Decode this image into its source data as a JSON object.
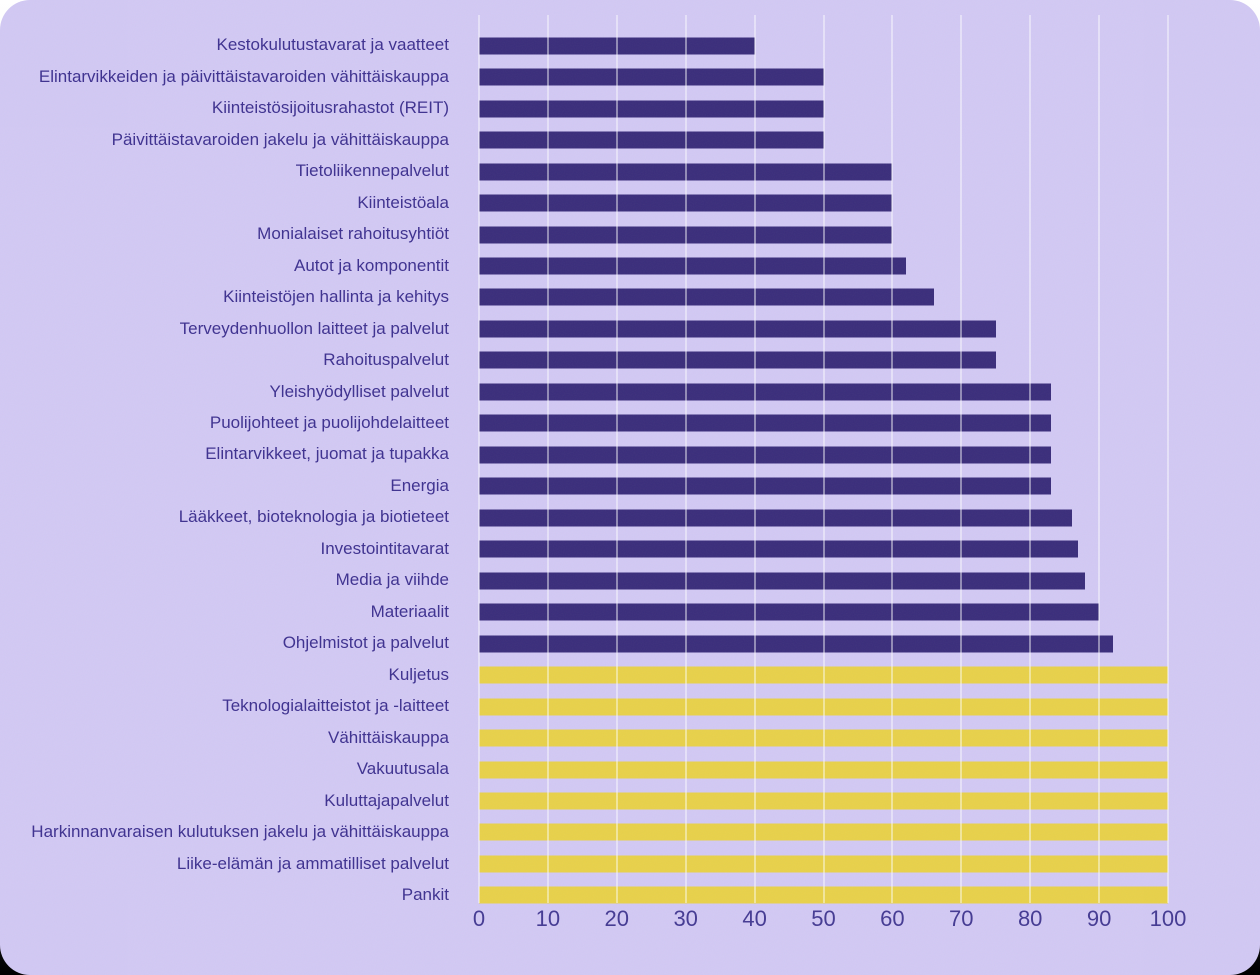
{
  "colors": {
    "panel_background": "#d2c9f4",
    "bar_purple": "#3a2d7b",
    "bar_yellow": "#e8d14a",
    "label_text": "#3e3190",
    "tick_text": "#443a93",
    "gridline": "rgba(255,255,255,0.45)"
  },
  "chart_data": {
    "type": "bar",
    "orientation": "horizontal",
    "title": "",
    "xlabel": "",
    "ylabel": "",
    "xlim": [
      0,
      100
    ],
    "x_ticks": [
      0,
      10,
      20,
      30,
      40,
      50,
      60,
      70,
      80,
      90,
      100
    ],
    "grid": "vertical",
    "legend": "none",
    "categories": [
      "Kestokulutustavarat ja vaatteet",
      "Elintarvikkeiden ja päivittäistavaroiden vähittäiskauppa",
      "Kiinteistösijoitusrahastot (REIT)",
      "Päivittäistavaroiden jakelu ja vähittäiskauppa",
      "Tietoliikennepalvelut",
      "Kiinteistöala",
      "Monialaiset rahoitusyhtiöt",
      "Autot ja komponentit",
      "Kiinteistöjen hallinta ja kehitys",
      "Terveydenhuollon laitteet ja palvelut",
      "Rahoituspalvelut",
      "Yleishyödylliset palvelut",
      "Puolijohteet ja puolijohdelaitteet",
      "Elintarvikkeet, juomat ja tupakka",
      "Energia",
      "Lääkkeet, bioteknologia ja biotieteet",
      "Investointitavarat",
      "Media ja viihde",
      "Materiaalit",
      "Ohjelmistot ja palvelut",
      "Kuljetus",
      "Teknologialaitteistot ja -laitteet",
      "Vähittäiskauppa",
      "Vakuutusala",
      "Kuluttajapalvelut",
      "Harkinnanvaraisen kulutuksen jakelu ja vähittäiskauppa",
      "Liike-elämän ja ammatilliset palvelut",
      "Pankit"
    ],
    "values": [
      40,
      50,
      50,
      50,
      60,
      60,
      60,
      62,
      66,
      75,
      75,
      83,
      83,
      83,
      83,
      86,
      87,
      88,
      90,
      92,
      100,
      100,
      100,
      100,
      100,
      100,
      100,
      100
    ],
    "bar_groups": [
      "purple",
      "purple",
      "purple",
      "purple",
      "purple",
      "purple",
      "purple",
      "purple",
      "purple",
      "purple",
      "purple",
      "purple",
      "purple",
      "purple",
      "purple",
      "purple",
      "purple",
      "purple",
      "purple",
      "purple",
      "yellow",
      "yellow",
      "yellow",
      "yellow",
      "yellow",
      "yellow",
      "yellow",
      "yellow"
    ]
  }
}
